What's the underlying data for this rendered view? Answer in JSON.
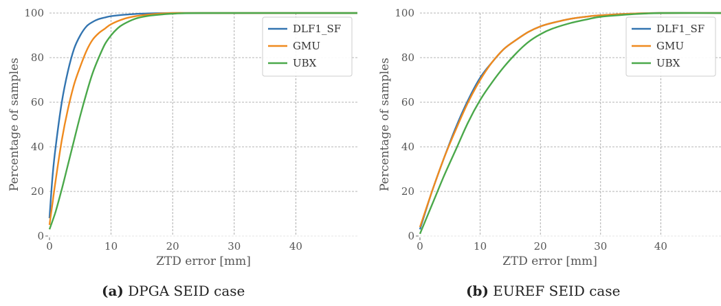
{
  "chart_data": [
    {
      "type": "line",
      "title": "",
      "xlabel": "ZTD error [mm]",
      "ylabel": "Percentage of samples",
      "xlim": [
        0,
        50
      ],
      "ylim": [
        0,
        100
      ],
      "xticks": [
        "0",
        "10",
        "20",
        "30",
        "40"
      ],
      "yticks": [
        "0",
        "20",
        "40",
        "60",
        "80",
        "100"
      ],
      "grid": true,
      "legend_position": "top-right",
      "caption": {
        "letter": "(a)",
        "text": "DPGA SEID case"
      },
      "series": [
        {
          "name": "DLF1_SF",
          "color": "#3274b0",
          "x": [
            0,
            0.5,
            1,
            2,
            3,
            4,
            5,
            6,
            7,
            8,
            9,
            10,
            12,
            14,
            16,
            20,
            25,
            50
          ],
          "y": [
            8,
            27,
            40,
            60,
            74,
            84,
            90,
            94,
            96,
            97.3,
            98,
            98.6,
            99.2,
            99.6,
            99.8,
            100,
            100,
            100
          ]
        },
        {
          "name": "GMU",
          "color": "#ef8a1e",
          "x": [
            0,
            0.5,
            1,
            2,
            3,
            4,
            5,
            6,
            7,
            8,
            9,
            10,
            12,
            14,
            16,
            20,
            25,
            50
          ],
          "y": [
            5,
            15,
            25,
            43,
            57,
            68,
            76,
            83,
            88,
            91,
            93,
            95,
            97.3,
            98.6,
            99.3,
            100,
            100,
            100
          ]
        },
        {
          "name": "UBX",
          "color": "#4aa84a",
          "x": [
            0,
            1,
            2,
            3,
            4,
            5,
            6,
            7,
            8,
            9,
            10,
            11,
            12,
            14,
            16,
            18,
            20,
            25,
            50
          ],
          "y": [
            3,
            11,
            21,
            32,
            43,
            54,
            64,
            73,
            80,
            86,
            90,
            93,
            95,
            97.5,
            98.7,
            99.3,
            99.7,
            100,
            100
          ]
        }
      ]
    },
    {
      "type": "line",
      "title": "",
      "xlabel": "ZTD error [mm]",
      "ylabel": "Percentage of samples",
      "xlim": [
        0,
        50
      ],
      "ylim": [
        0,
        100
      ],
      "xticks": [
        "0",
        "10",
        "20",
        "30",
        "40"
      ],
      "yticks": [
        "0",
        "20",
        "40",
        "60",
        "80",
        "100"
      ],
      "grid": true,
      "legend_position": "top-right",
      "caption": {
        "letter": "(b)",
        "text": "EUREF SEID case"
      },
      "series": [
        {
          "name": "DLF1_SF",
          "color": "#3274b0",
          "x": [
            0,
            2,
            4,
            6,
            8,
            10,
            12,
            14,
            16,
            18,
            20,
            22,
            25,
            28,
            30,
            35,
            40,
            50
          ],
          "y": [
            3,
            20,
            35,
            49,
            61,
            71,
            78,
            84,
            88,
            91.5,
            94,
            95.6,
            97.4,
            98.5,
            99,
            99.7,
            100,
            100
          ]
        },
        {
          "name": "GMU",
          "color": "#ef8a1e",
          "x": [
            0,
            2,
            4,
            6,
            8,
            10,
            12,
            14,
            16,
            18,
            20,
            22,
            25,
            28,
            30,
            35,
            40,
            50
          ],
          "y": [
            4,
            20,
            35,
            48,
            60,
            70,
            78,
            84,
            88,
            91.5,
            94,
            95.6,
            97.4,
            98.5,
            99,
            99.7,
            100,
            100
          ]
        },
        {
          "name": "UBX",
          "color": "#4aa84a",
          "x": [
            0,
            2,
            4,
            6,
            8,
            10,
            12,
            14,
            16,
            18,
            20,
            22,
            25,
            28,
            30,
            35,
            40,
            50
          ],
          "y": [
            1,
            14,
            27,
            39,
            51,
            61,
            69,
            76,
            82,
            87,
            90.5,
            93,
            95.5,
            97.3,
            98.3,
            99.4,
            100,
            100
          ]
        }
      ]
    }
  ]
}
